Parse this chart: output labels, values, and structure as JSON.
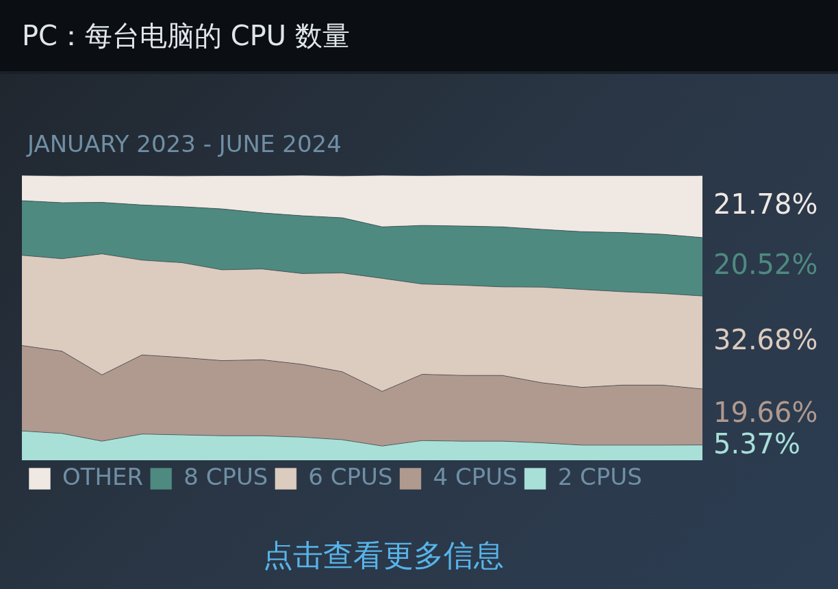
{
  "chart_data": {
    "type": "area",
    "title": "PC：每台电脑的 CPU 数量",
    "subtitle": "JANUARY 2023 - JUNE 2024",
    "stacked": true,
    "categories": [
      null,
      null,
      null,
      null,
      null,
      null,
      null,
      null,
      null,
      null,
      null,
      null,
      null,
      null,
      null,
      null,
      null,
      null
    ],
    "legend": "bottom left",
    "series": [
      {
        "name": "2 CPUS",
        "color": "#a8e0d8",
        "values": [
          10.3,
          9.4,
          6.7,
          9.2,
          8.9,
          8.6,
          8.6,
          8.1,
          7.2,
          5.0,
          6.9,
          6.7,
          6.7,
          6.1,
          5.3,
          5.3,
          5.3,
          5.37
        ],
        "value_labels": [
          null,
          null,
          null,
          null,
          null,
          null,
          null,
          null,
          null,
          null,
          null,
          null,
          null,
          null,
          null,
          null,
          null,
          "5.37%"
        ]
      },
      {
        "name": "4 CPUS",
        "color": "#b0998f",
        "values": [
          30.0,
          28.9,
          23.3,
          27.8,
          27.2,
          26.4,
          26.7,
          25.6,
          23.9,
          19.2,
          23.3,
          23.1,
          23.1,
          21.1,
          20.3,
          21.1,
          21.1,
          19.66
        ],
        "value_labels": [
          null,
          null,
          null,
          null,
          null,
          null,
          null,
          null,
          null,
          null,
          null,
          null,
          null,
          null,
          null,
          null,
          null,
          "19.66%"
        ]
      },
      {
        "name": "6 CPUS",
        "color": "#dccbbf",
        "values": [
          31.7,
          32.5,
          42.5,
          33.3,
          33.3,
          31.9,
          31.9,
          31.9,
          34.7,
          39.7,
          31.7,
          31.7,
          31.1,
          33.6,
          34.4,
          32.8,
          32.2,
          32.68
        ],
        "value_labels": [
          null,
          null,
          null,
          null,
          null,
          null,
          null,
          null,
          null,
          null,
          null,
          null,
          null,
          null,
          null,
          null,
          null,
          "32.68%"
        ]
      },
      {
        "name": "8 CPUS",
        "color": "#4e8a80",
        "values": [
          19.2,
          19.7,
          18.1,
          19.4,
          19.7,
          21.4,
          19.7,
          20.3,
          19.4,
          18.1,
          20.6,
          20.8,
          21.1,
          20.3,
          20.3,
          20.8,
          20.8,
          20.52
        ],
        "value_labels": [
          null,
          null,
          null,
          null,
          null,
          null,
          null,
          null,
          null,
          null,
          null,
          null,
          null,
          null,
          null,
          null,
          null,
          "20.52%"
        ]
      },
      {
        "name": "OTHER",
        "color": "#efe8e3",
        "values": [
          8.9,
          9.4,
          9.4,
          10.3,
          10.8,
          11.7,
          13.1,
          14.2,
          14.7,
          18.1,
          17.5,
          17.8,
          18.1,
          18.9,
          19.7,
          20.0,
          20.6,
          21.78
        ],
        "value_labels": [
          null,
          null,
          null,
          null,
          null,
          null,
          null,
          null,
          null,
          null,
          null,
          null,
          null,
          null,
          null,
          null,
          null,
          "21.78%"
        ]
      }
    ],
    "annotations": [
      "点击查看更多信息"
    ]
  }
}
